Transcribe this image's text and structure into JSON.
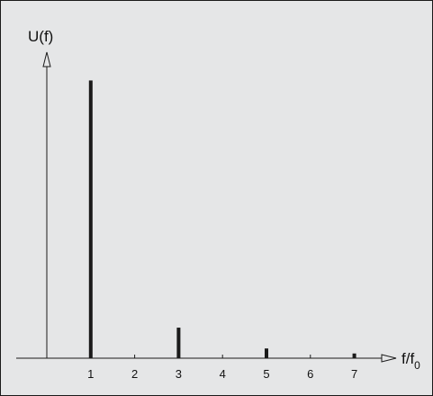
{
  "chart_data": {
    "type": "bar",
    "title": "",
    "ylabel": "U(f)",
    "xlabel_main": "f/f",
    "xlabel_sub": "0",
    "x_ticks": [
      "1",
      "2",
      "3",
      "4",
      "5",
      "6",
      "7"
    ],
    "x": [
      1,
      3,
      5,
      7
    ],
    "values": [
      1.0,
      0.11,
      0.035,
      0.017
    ],
    "xlim": [
      0,
      8.4
    ],
    "ylim": [
      0,
      1.05
    ],
    "grid": false,
    "legend": "none",
    "colors": {
      "background": "#e5e6e7",
      "axis": "#1a1a1a",
      "bars": "#1a1a1a"
    }
  }
}
